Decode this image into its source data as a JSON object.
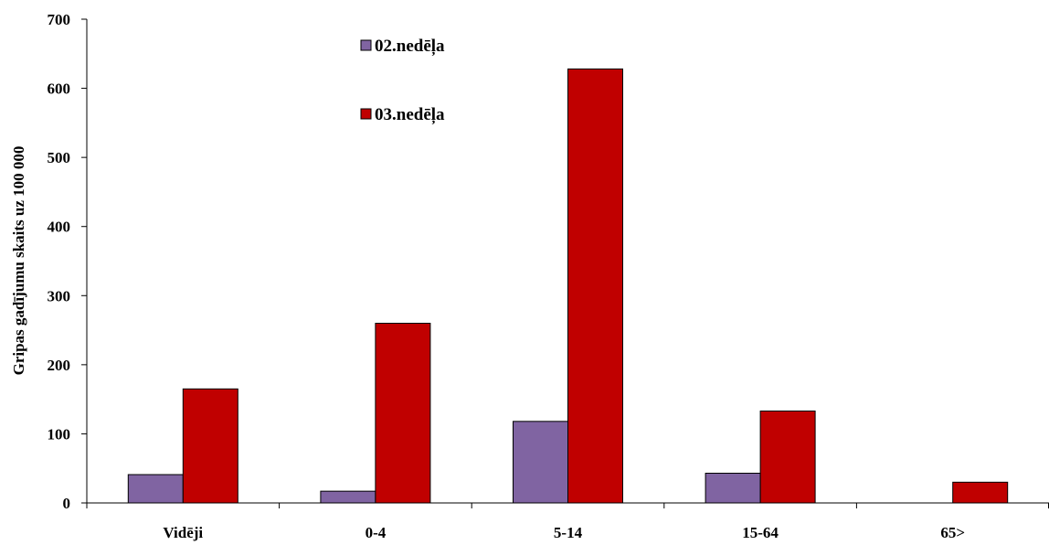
{
  "chart_data": {
    "type": "bar",
    "title": "",
    "xlabel": "",
    "ylabel": "Gripas gadījumu skaits uz 100 000",
    "categories": [
      "Vidēji",
      "0-4",
      "5-14",
      "15-64",
      "65>"
    ],
    "series": [
      {
        "name": "02.nedēļa",
        "values": [
          41,
          17,
          118,
          43,
          0
        ],
        "color": "#8064a2"
      },
      {
        "name": "03.nedēļa",
        "values": [
          165,
          260,
          628,
          133,
          30
        ],
        "color": "#c00000"
      }
    ],
    "ylim": [
      0,
      700
    ],
    "yticks": [
      "0",
      "100",
      "200",
      "300",
      "400",
      "500",
      "600",
      "700"
    ],
    "grid": false,
    "legend_position": "top-center"
  }
}
